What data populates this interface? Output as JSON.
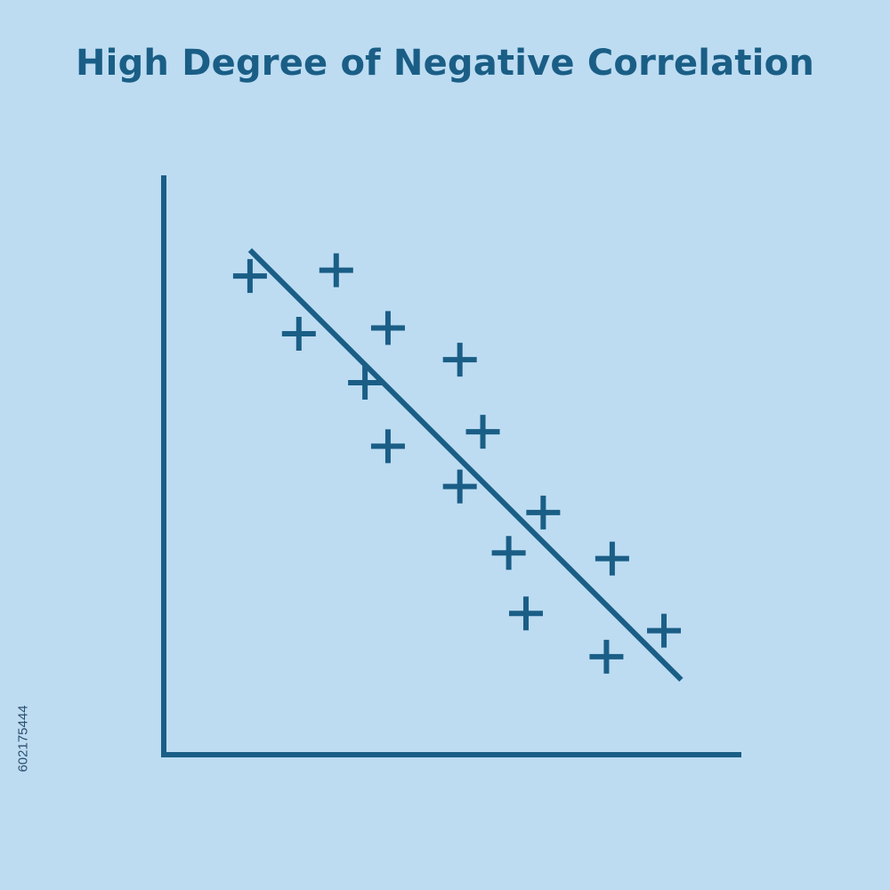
{
  "colors": {
    "background": "#bddcf2",
    "primary": "#1a5e86",
    "id_text": "#2b4f6e"
  },
  "stock_id": "602175444",
  "chart_data": {
    "type": "scatter",
    "title": "High Degree of Negative Correlation",
    "xlabel": "",
    "ylabel": "",
    "xlim": [
      0,
      100
    ],
    "ylim": [
      0,
      100
    ],
    "grid": false,
    "tick_labels": false,
    "marker": "plus",
    "points": [
      {
        "x": 15,
        "y": 83
      },
      {
        "x": 30,
        "y": 84
      },
      {
        "x": 23.5,
        "y": 73
      },
      {
        "x": 39,
        "y": 74
      },
      {
        "x": 35,
        "y": 64.5
      },
      {
        "x": 39,
        "y": 53.5
      },
      {
        "x": 51.5,
        "y": 68.5
      },
      {
        "x": 55.5,
        "y": 56
      },
      {
        "x": 51.5,
        "y": 46.5
      },
      {
        "x": 66,
        "y": 42
      },
      {
        "x": 60,
        "y": 35
      },
      {
        "x": 63,
        "y": 24.5
      },
      {
        "x": 78,
        "y": 34
      },
      {
        "x": 77,
        "y": 17
      },
      {
        "x": 87,
        "y": 21.5
      }
    ],
    "trendline": {
      "x": [
        15,
        90
      ],
      "y": [
        87.5,
        13
      ]
    }
  }
}
